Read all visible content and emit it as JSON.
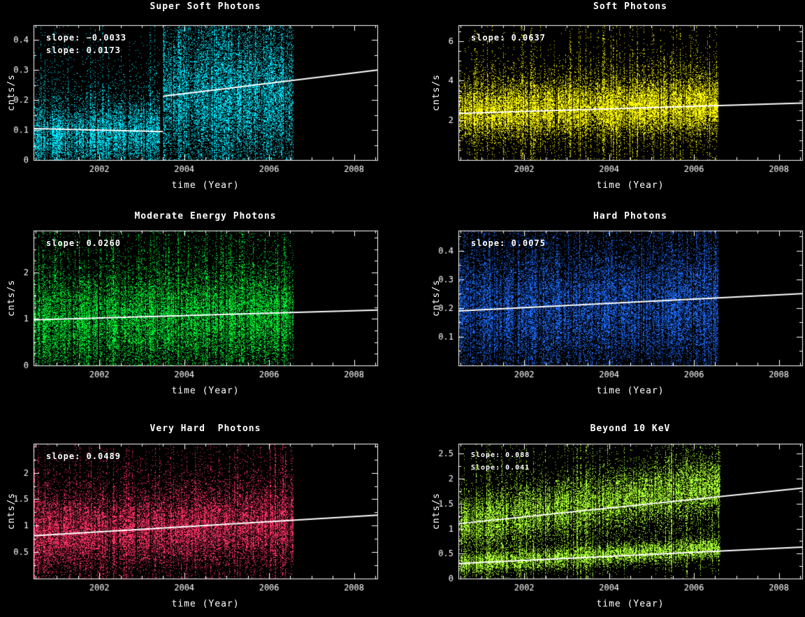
{
  "figure": {
    "background": "#000000",
    "text_color": "#ffffff",
    "axis_color": "#ffffff",
    "fit_line_color": "#ffffff"
  },
  "chart_data": [
    {
      "type": "scatter",
      "title": "Super Soft Photons",
      "xlabel": "time (Year)",
      "ylabel": "cnts/s",
      "point_color": "#00e8ff",
      "annotations": [
        "slope: −0.0033",
        "slope: 0.0173"
      ],
      "x_range": [
        2000.45,
        2008.55
      ],
      "x_ticks": [
        2002,
        2004,
        2006,
        2008
      ],
      "x_tick_labels": [
        "2002",
        "2004",
        "2006",
        "2008"
      ],
      "x_minor_step": 0.5,
      "y_range": [
        0,
        0.45
      ],
      "y_ticks": [
        0,
        0.1,
        0.2,
        0.3,
        0.4
      ],
      "y_tick_labels": [
        "0",
        "0.1",
        "0.2",
        "0.3",
        "0.4"
      ],
      "y_minor_step": 0.05,
      "grid": false,
      "data_span_years": [
        2000.45,
        2006.55
      ],
      "fit_lines": [
        {
          "slope": -0.0033,
          "x1": 2000.45,
          "y1": 0.105,
          "x2": 2003.5,
          "y2": 0.095
        },
        {
          "slope": 0.0173,
          "x1": 2003.5,
          "y1": 0.213,
          "x2": 2008.55,
          "y2": 0.3
        }
      ],
      "scatter_profile": {
        "segments": [
          {
            "x_span": [
              2000.45,
              2003.42
            ],
            "density": 62,
            "gap_prob": 0.06,
            "spike_prob": 0.12,
            "bands": [
              {
                "frac": 0.8,
                "c1": 0.075,
                "c2": 0.09,
                "spread": 0.048
              },
              {
                "frac": 0.2,
                "c1": 0.16,
                "c2": 0.17,
                "spread": 0.09
              }
            ]
          },
          {
            "x_span": [
              2003.5,
              2006.55
            ],
            "density": 88,
            "gap_prob": 0.05,
            "spike_prob": 0.3,
            "bands": [
              {
                "frac": 0.65,
                "c1": 0.2,
                "c2": 0.21,
                "spread": 0.1
              },
              {
                "frac": 0.35,
                "c1": 0.24,
                "c2": 0.25,
                "spread": 0.14
              }
            ]
          }
        ]
      }
    },
    {
      "type": "scatter",
      "title": "Soft Photons",
      "xlabel": "time (Year)",
      "ylabel": "cnts/s",
      "point_color": "#f8f500",
      "annotations": [
        "slope: 0.0637"
      ],
      "x_range": [
        2000.45,
        2008.55
      ],
      "x_ticks": [
        2002,
        2004,
        2006,
        2008
      ],
      "x_tick_labels": [
        "2002",
        "2004",
        "2006",
        "2008"
      ],
      "x_minor_step": 0.5,
      "y_range": [
        0,
        6.8
      ],
      "y_ticks": [
        2,
        4,
        6
      ],
      "y_tick_labels": [
        "2",
        "4",
        "6"
      ],
      "y_minor_step": 0.5,
      "grid": false,
      "data_span_years": [
        2000.45,
        2006.55
      ],
      "fit_lines": [
        {
          "slope": 0.0637,
          "x1": 2000.45,
          "y1": 2.35,
          "x2": 2008.55,
          "y2": 2.87
        }
      ],
      "scatter_profile": {
        "segments": [
          {
            "x_span": [
              2000.45,
              2006.55
            ],
            "density": 80,
            "gap_prob": 0.05,
            "spike_prob": 0.18,
            "bands": [
              {
                "frac": 0.7,
                "c1": 2.45,
                "c2": 2.75,
                "spread": 0.6
              },
              {
                "frac": 0.3,
                "c1": 2.6,
                "c2": 3.0,
                "spread": 1.15
              }
            ]
          }
        ]
      }
    },
    {
      "type": "scatter",
      "title": "Moderate Energy Photons",
      "xlabel": "time (Year)",
      "ylabel": "cnts/s",
      "point_color": "#00ee33",
      "annotations": [
        "slope: 0.0260"
      ],
      "x_range": [
        2000.45,
        2008.55
      ],
      "x_ticks": [
        2002,
        2004,
        2006,
        2008
      ],
      "x_tick_labels": [
        "2002",
        "2004",
        "2006",
        "2008"
      ],
      "x_minor_step": 0.5,
      "y_range": [
        0,
        2.9
      ],
      "y_ticks": [
        0,
        1,
        2
      ],
      "y_tick_labels": [
        "0",
        "1",
        "2"
      ],
      "y_minor_step": 0.25,
      "grid": false,
      "data_span_years": [
        2000.45,
        2006.55
      ],
      "fit_lines": [
        {
          "slope": 0.026,
          "x1": 2000.45,
          "y1": 0.98,
          "x2": 2008.55,
          "y2": 1.19
        }
      ],
      "scatter_profile": {
        "segments": [
          {
            "x_span": [
              2000.45,
              2006.55
            ],
            "density": 85,
            "gap_prob": 0.05,
            "spike_prob": 0.22,
            "bands": [
              {
                "frac": 0.7,
                "c1": 0.95,
                "c2": 1.1,
                "spread": 0.45
              },
              {
                "frac": 0.3,
                "c1": 1.05,
                "c2": 1.2,
                "spread": 0.8
              }
            ]
          }
        ]
      }
    },
    {
      "type": "scatter",
      "title": "Hard Photons",
      "xlabel": "time (Year)",
      "ylabel": "cnts/s",
      "point_color": "#1e6eff",
      "annotations": [
        "slope: 0.0075"
      ],
      "x_range": [
        2000.45,
        2008.55
      ],
      "x_ticks": [
        2002,
        2004,
        2006,
        2008
      ],
      "x_tick_labels": [
        "2002",
        "2004",
        "2006",
        "2008"
      ],
      "x_minor_step": 0.5,
      "y_range": [
        0,
        0.47
      ],
      "y_ticks": [
        0.1,
        0.2,
        0.3,
        0.4
      ],
      "y_tick_labels": [
        "0.1",
        "0.2",
        "0.3",
        "0.4"
      ],
      "y_minor_step": 0.05,
      "grid": false,
      "data_span_years": [
        2000.45,
        2006.55
      ],
      "fit_lines": [
        {
          "slope": 0.0075,
          "x1": 2000.45,
          "y1": 0.19,
          "x2": 2008.55,
          "y2": 0.25
        }
      ],
      "scatter_profile": {
        "segments": [
          {
            "x_span": [
              2000.45,
              2006.55
            ],
            "density": 80,
            "gap_prob": 0.05,
            "spike_prob": 0.2,
            "bands": [
              {
                "frac": 0.7,
                "c1": 0.19,
                "c2": 0.21,
                "spread": 0.09
              },
              {
                "frac": 0.3,
                "c1": 0.21,
                "c2": 0.23,
                "spread": 0.14
              }
            ]
          }
        ]
      }
    },
    {
      "type": "scatter",
      "title": "Very Hard  Photons",
      "xlabel": "time (Year)",
      "ylabel": "cnts/s",
      "point_color": "#ff3366",
      "annotations": [
        "slope: 0.0489"
      ],
      "x_range": [
        2000.45,
        2008.55
      ],
      "x_ticks": [
        2002,
        2004,
        2006,
        2008
      ],
      "x_tick_labels": [
        "2002",
        "2004",
        "2006",
        "2008"
      ],
      "x_minor_step": 0.5,
      "y_range": [
        0,
        2.55
      ],
      "y_ticks": [
        0.5,
        1,
        1.5,
        2
      ],
      "y_tick_labels": [
        "0.5",
        "1",
        "1.5",
        "2"
      ],
      "y_minor_step": 0.25,
      "grid": false,
      "data_span_years": [
        2000.45,
        2006.55
      ],
      "fit_lines": [
        {
          "slope": 0.0489,
          "x1": 2000.45,
          "y1": 0.81,
          "x2": 2008.55,
          "y2": 1.2
        }
      ],
      "scatter_profile": {
        "segments": [
          {
            "x_span": [
              2000.45,
              2006.55
            ],
            "density": 70,
            "gap_prob": 0.05,
            "spike_prob": 0.18,
            "bands": [
              {
                "frac": 0.7,
                "c1": 0.85,
                "c2": 1.05,
                "spread": 0.32
              },
              {
                "frac": 0.3,
                "c1": 0.95,
                "c2": 1.15,
                "spread": 0.6
              }
            ]
          }
        ]
      }
    },
    {
      "type": "scatter",
      "title": "Beyond 10 KeV",
      "xlabel": "time (Year)",
      "ylabel": "cnts/s",
      "point_color": "#aaff33",
      "annotations": [
        "Slope: 0.088",
        "Slope: 0.041"
      ],
      "x_range": [
        2000.45,
        2008.55
      ],
      "x_ticks": [
        2002,
        2004,
        2006,
        2008
      ],
      "x_tick_labels": [
        "2002",
        "2004",
        "2006",
        "2008"
      ],
      "x_minor_step": 0.5,
      "y_range": [
        0,
        2.7
      ],
      "y_ticks": [
        0,
        0.5,
        1,
        1.5,
        2,
        2.5
      ],
      "y_tick_labels": [
        "0",
        "0.5",
        "1",
        "1.5",
        "2",
        "2.5"
      ],
      "y_minor_step": 0.25,
      "grid": false,
      "data_span_years": [
        2000.45,
        2006.6
      ],
      "fit_lines": [
        {
          "slope": 0.088,
          "x1": 2000.45,
          "y1": 1.1,
          "x2": 2008.55,
          "y2": 1.81
        },
        {
          "slope": 0.041,
          "x1": 2000.45,
          "y1": 0.3,
          "x2": 2008.55,
          "y2": 0.63
        }
      ],
      "scatter_profile": {
        "segments": [
          {
            "x_span": [
              2000.45,
              2006.6
            ],
            "density": 80,
            "gap_prob": 0.06,
            "spike_prob": 0.15,
            "bands": [
              {
                "frac": 0.55,
                "c1": 1.1,
                "c2": 1.9,
                "spread": 0.27
              },
              {
                "frac": 0.3,
                "c1": 0.3,
                "c2": 0.62,
                "spread": 0.11
              },
              {
                "frac": 0.15,
                "c1": 1.0,
                "c2": 1.65,
                "spread": 0.6
              }
            ]
          }
        ]
      }
    }
  ]
}
